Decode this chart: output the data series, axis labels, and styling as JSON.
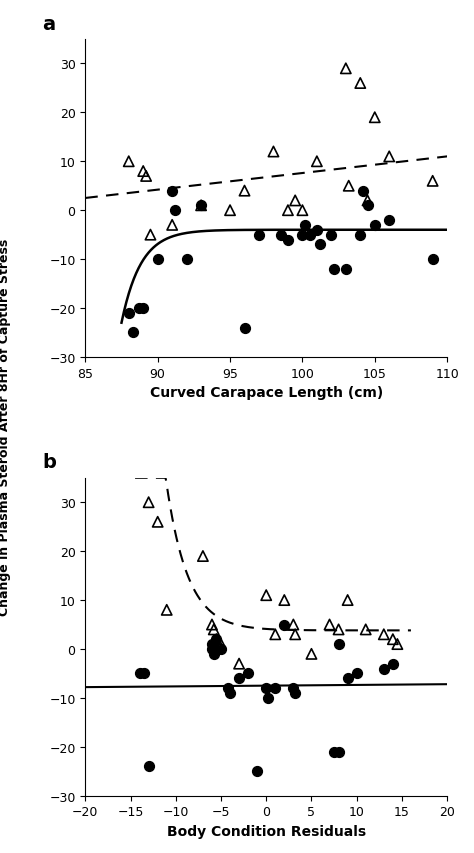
{
  "panel_a": {
    "filled_circles": [
      [
        88.0,
        -21
      ],
      [
        88.3,
        -25
      ],
      [
        88.7,
        -20
      ],
      [
        89.0,
        -20
      ],
      [
        90.0,
        -10
      ],
      [
        91.0,
        4
      ],
      [
        91.2,
        0
      ],
      [
        92.0,
        -10
      ],
      [
        93.0,
        1
      ],
      [
        96.0,
        -24
      ],
      [
        97.0,
        -5
      ],
      [
        98.5,
        -5
      ],
      [
        99.0,
        -6
      ],
      [
        100.0,
        -5
      ],
      [
        100.2,
        -3
      ],
      [
        100.5,
        -5
      ],
      [
        101.0,
        -4
      ],
      [
        101.2,
        -7
      ],
      [
        102.0,
        -5
      ],
      [
        102.2,
        -12
      ],
      [
        103.0,
        -12
      ],
      [
        104.0,
        -5
      ],
      [
        104.2,
        4
      ],
      [
        104.5,
        1
      ],
      [
        105.0,
        -3
      ],
      [
        106.0,
        -2
      ],
      [
        109.0,
        -10
      ]
    ],
    "open_triangles": [
      [
        88.0,
        10
      ],
      [
        89.0,
        8
      ],
      [
        89.2,
        7
      ],
      [
        89.5,
        -5
      ],
      [
        91.0,
        -3
      ],
      [
        93.0,
        1
      ],
      [
        95.0,
        0
      ],
      [
        96.0,
        4
      ],
      [
        98.0,
        12
      ],
      [
        99.0,
        0
      ],
      [
        99.5,
        2
      ],
      [
        100.0,
        0
      ],
      [
        101.0,
        10
      ],
      [
        103.0,
        29
      ],
      [
        103.2,
        5
      ],
      [
        104.0,
        26
      ],
      [
        104.5,
        2
      ],
      [
        105.0,
        19
      ],
      [
        106.0,
        11
      ],
      [
        109.0,
        6
      ]
    ],
    "solid_curve": {
      "x_start": 87.5,
      "x_end": 110,
      "asymptote": -4.0,
      "drop": 19.0,
      "decay": 0.75,
      "shift": 87.5
    },
    "dashed_line": {
      "x1": 85,
      "y1": 2.5,
      "x2": 110,
      "y2": 11.0
    },
    "xlabel": "Curved Carapace Length (cm)",
    "panel_label": "a",
    "xlim": [
      85,
      110
    ],
    "ylim": [
      -30,
      35
    ],
    "yticks": [
      -30,
      -20,
      -10,
      0,
      10,
      20,
      30
    ],
    "xticks": [
      85,
      90,
      95,
      100,
      105,
      110
    ]
  },
  "panel_b": {
    "filled_circles": [
      [
        -14.0,
        -5
      ],
      [
        -13.5,
        -5
      ],
      [
        -13.0,
        -24
      ],
      [
        -6.0,
        1
      ],
      [
        -6.0,
        0
      ],
      [
        -5.8,
        -1
      ],
      [
        -5.5,
        2
      ],
      [
        -5.0,
        0
      ],
      [
        -4.2,
        -8
      ],
      [
        -4.0,
        -9
      ],
      [
        -3.0,
        -6
      ],
      [
        -2.0,
        -5
      ],
      [
        0.0,
        -8
      ],
      [
        0.2,
        -10
      ],
      [
        -1.0,
        -25
      ],
      [
        1.0,
        -8
      ],
      [
        2.0,
        5
      ],
      [
        3.0,
        -8
      ],
      [
        3.2,
        -9
      ],
      [
        7.5,
        -21
      ],
      [
        8.0,
        -21
      ],
      [
        8.0,
        1
      ],
      [
        9.0,
        -6
      ],
      [
        10.0,
        -5
      ],
      [
        13.0,
        -4
      ],
      [
        14.0,
        -3
      ]
    ],
    "open_triangles": [
      [
        -13.0,
        30
      ],
      [
        -12.0,
        26
      ],
      [
        -11.0,
        8
      ],
      [
        -7.0,
        19
      ],
      [
        -6.0,
        5
      ],
      [
        -5.8,
        4
      ],
      [
        -5.5,
        2
      ],
      [
        -5.0,
        1
      ],
      [
        -3.0,
        -3
      ],
      [
        0.0,
        11
      ],
      [
        1.0,
        3
      ],
      [
        2.0,
        10
      ],
      [
        3.0,
        5
      ],
      [
        3.2,
        3
      ],
      [
        5.0,
        -1
      ],
      [
        7.0,
        5
      ],
      [
        8.0,
        4
      ],
      [
        9.0,
        10
      ],
      [
        11.0,
        4
      ],
      [
        13.0,
        3
      ],
      [
        14.0,
        2
      ],
      [
        14.5,
        1
      ]
    ],
    "solid_line": {
      "x1": -20,
      "y1": -7.8,
      "x2": 20,
      "y2": -7.2
    },
    "dashed_curve": {
      "x_start": -14.5,
      "x_end": 16,
      "asymptote": 3.8,
      "scale": 85,
      "decay": 0.42,
      "shift": -13.5
    },
    "xlabel": "Body Condition Residuals",
    "panel_label": "b",
    "xlim": [
      -20,
      20
    ],
    "ylim": [
      -30,
      35
    ],
    "yticks": [
      -30,
      -20,
      -10,
      0,
      10,
      20,
      30
    ],
    "xticks": [
      -20,
      -15,
      -10,
      -5,
      0,
      5,
      10,
      15,
      20
    ]
  },
  "shared_ylabel": "Change in Plasma Steroid After 8Hr of Capture Stress",
  "figure_bgcolor": "#ffffff"
}
